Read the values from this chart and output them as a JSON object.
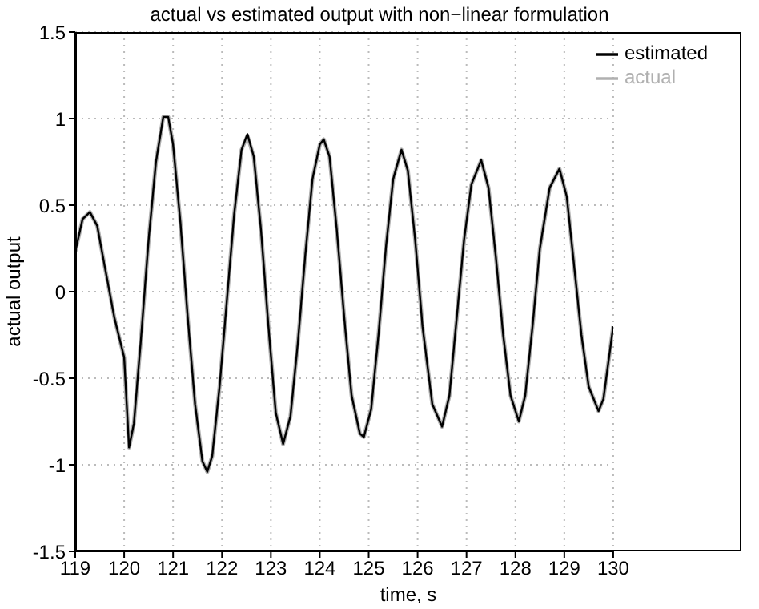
{
  "chart_data": {
    "type": "line",
    "title": "actual vs estimated output with non−linear formulation",
    "xlabel": "time, s",
    "ylabel": "actual output",
    "x": [
      119.0,
      119.15,
      119.3,
      119.45,
      119.6,
      119.8,
      120.0,
      120.1,
      120.2,
      120.35,
      120.5,
      120.65,
      120.8,
      120.9,
      121.0,
      121.15,
      121.3,
      121.45,
      121.6,
      121.7,
      121.8,
      121.95,
      122.1,
      122.25,
      122.4,
      122.52,
      122.65,
      122.8,
      122.95,
      123.1,
      123.25,
      123.4,
      123.55,
      123.7,
      123.85,
      124.0,
      124.08,
      124.2,
      124.35,
      124.5,
      124.65,
      124.82,
      124.9,
      125.05,
      125.2,
      125.35,
      125.5,
      125.67,
      125.8,
      125.95,
      126.1,
      126.3,
      126.5,
      126.65,
      126.8,
      126.95,
      127.1,
      127.3,
      127.45,
      127.6,
      127.75,
      127.9,
      128.07,
      128.2,
      128.35,
      128.5,
      128.7,
      128.9,
      129.05,
      129.2,
      129.35,
      129.5,
      129.7,
      129.8,
      130.0
    ],
    "series": [
      {
        "name": "estimated",
        "color": "#000000",
        "values": [
          0.23,
          0.42,
          0.46,
          0.38,
          0.15,
          -0.15,
          -0.38,
          -0.9,
          -0.76,
          -0.25,
          0.3,
          0.75,
          1.01,
          1.01,
          0.85,
          0.4,
          -0.15,
          -0.65,
          -0.98,
          -1.04,
          -0.95,
          -0.55,
          -0.05,
          0.45,
          0.82,
          0.91,
          0.78,
          0.35,
          -0.2,
          -0.7,
          -0.88,
          -0.72,
          -0.3,
          0.2,
          0.65,
          0.85,
          0.88,
          0.78,
          0.35,
          -0.15,
          -0.6,
          -0.82,
          -0.84,
          -0.68,
          -0.25,
          0.25,
          0.65,
          0.82,
          0.7,
          0.3,
          -0.2,
          -0.65,
          -0.78,
          -0.6,
          -0.15,
          0.3,
          0.62,
          0.76,
          0.6,
          0.2,
          -0.25,
          -0.6,
          -0.75,
          -0.6,
          -0.2,
          0.25,
          0.6,
          0.71,
          0.55,
          0.15,
          -0.25,
          -0.55,
          -0.69,
          -0.62,
          -0.2
        ]
      },
      {
        "name": "actual",
        "color": "#b0b0b0",
        "values": [
          0.23,
          0.42,
          0.46,
          0.38,
          0.15,
          -0.15,
          -0.38,
          -0.9,
          -0.76,
          -0.25,
          0.3,
          0.75,
          1.01,
          1.01,
          0.85,
          0.4,
          -0.15,
          -0.65,
          -0.98,
          -1.04,
          -0.95,
          -0.55,
          -0.05,
          0.45,
          0.82,
          0.9,
          0.78,
          0.35,
          -0.2,
          -0.7,
          -0.88,
          -0.72,
          -0.3,
          0.2,
          0.65,
          0.85,
          0.88,
          0.78,
          0.35,
          -0.15,
          -0.6,
          -0.82,
          -0.84,
          -0.68,
          -0.25,
          0.25,
          0.65,
          0.82,
          0.7,
          0.3,
          -0.2,
          -0.65,
          -0.78,
          -0.6,
          -0.15,
          0.3,
          0.62,
          0.76,
          0.6,
          0.2,
          -0.25,
          -0.6,
          -0.75,
          -0.6,
          -0.2,
          0.25,
          0.6,
          0.71,
          0.55,
          0.15,
          -0.25,
          -0.55,
          -0.69,
          -0.62,
          -0.2
        ]
      }
    ],
    "xlim": [
      119,
      130
    ],
    "xticks": [
      119,
      120,
      121,
      122,
      123,
      124,
      125,
      126,
      127,
      128,
      129,
      130
    ],
    "ylim": [
      -1.5,
      1.5
    ],
    "yticks": [
      -1.5,
      -1,
      -0.5,
      0,
      0.5,
      1,
      1.5
    ],
    "grid": true,
    "legend": "top right",
    "marker": "none",
    "line_style": "solid"
  }
}
